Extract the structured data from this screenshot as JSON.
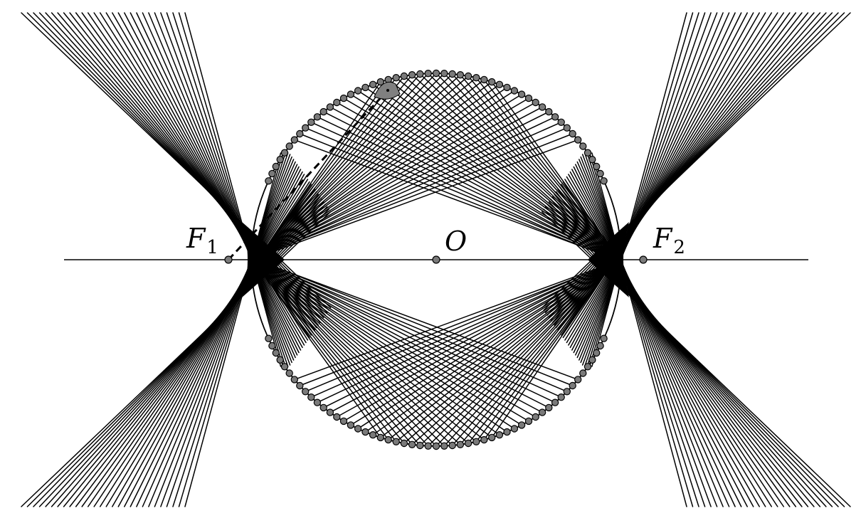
{
  "labels": {
    "focus_left": "F",
    "focus_left_sub": "1",
    "focus_right": "F",
    "focus_right_sub": "2",
    "center": "O"
  },
  "colors": {
    "ink": "#000000",
    "point_fill": "#7a7a7a",
    "marker_fill": "#808080",
    "background": "#ffffff"
  },
  "geometry_model": {
    "ellipse_a": 1.0,
    "ellipse_b": 0.6,
    "focus_distance": 1.12,
    "ray_count_per_side": 28
  }
}
